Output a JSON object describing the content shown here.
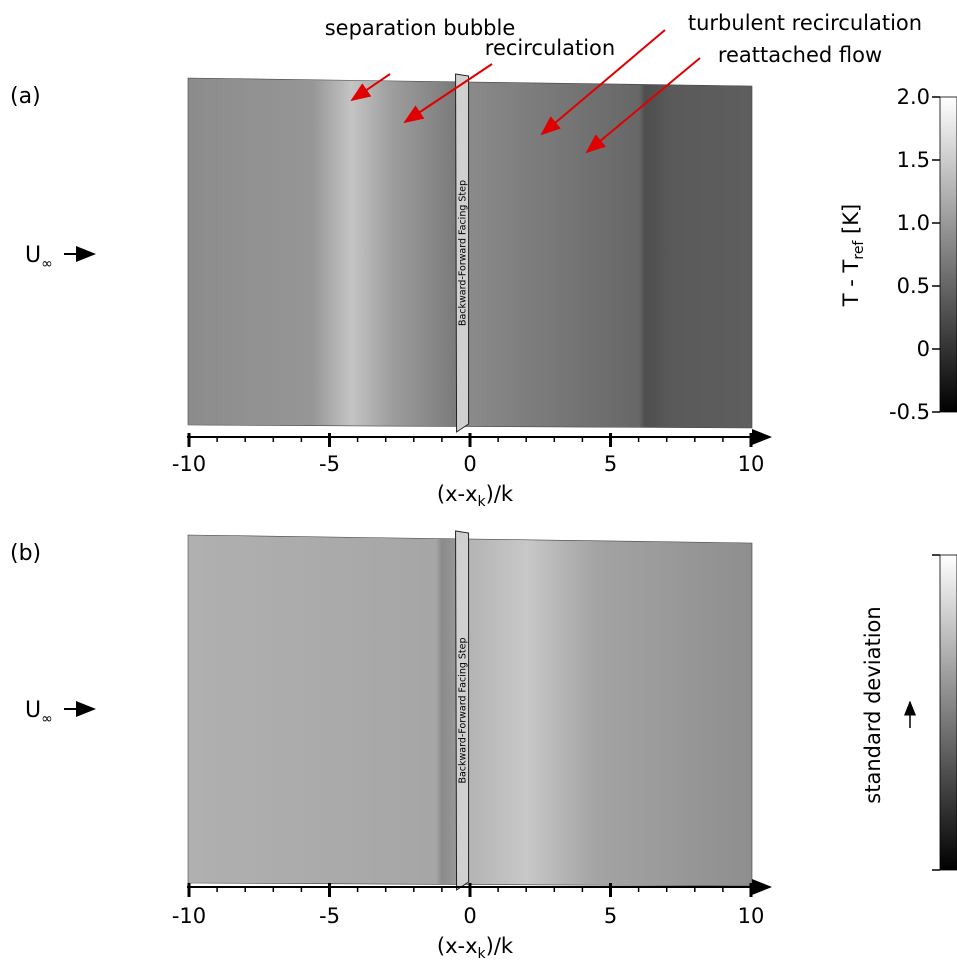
{
  "panels": [
    {
      "label": "(a)",
      "inflow": {
        "symbol": "U",
        "subscript": "∞"
      },
      "step_label": "Backward-Forward Facing Step",
      "annotations": [
        "separation bubble",
        "recirculation",
        "turbulent recirculation",
        "reattached flow"
      ],
      "x_axis": {
        "label": [
          "(x-x",
          "k",
          ")/k"
        ],
        "xlim": [
          -10,
          10
        ],
        "xticks": [
          -10,
          -5,
          0,
          5,
          10
        ]
      },
      "colorbar": {
        "label": [
          "T - T",
          "ref",
          " [K]"
        ],
        "ylim": [
          -0.5,
          2.0
        ],
        "yticks": [
          -0.5,
          0,
          0.5,
          {
            "value": 1,
            "label": "1.0"
          },
          1.5,
          {
            "value": 2,
            "label": "2.0"
          }
        ]
      }
    },
    {
      "label": "(b)",
      "inflow": {
        "symbol": "U",
        "subscript": "∞"
      },
      "step_label": "Backward-Forward Facing Step",
      "x_axis": {
        "label": [
          "(x-x",
          "k",
          ")/k"
        ],
        "xlim": [
          -10,
          10
        ],
        "xticks": [
          -10,
          -5,
          0,
          5,
          10
        ]
      },
      "colorbar": {
        "label": "standard deviation"
      }
    }
  ]
}
